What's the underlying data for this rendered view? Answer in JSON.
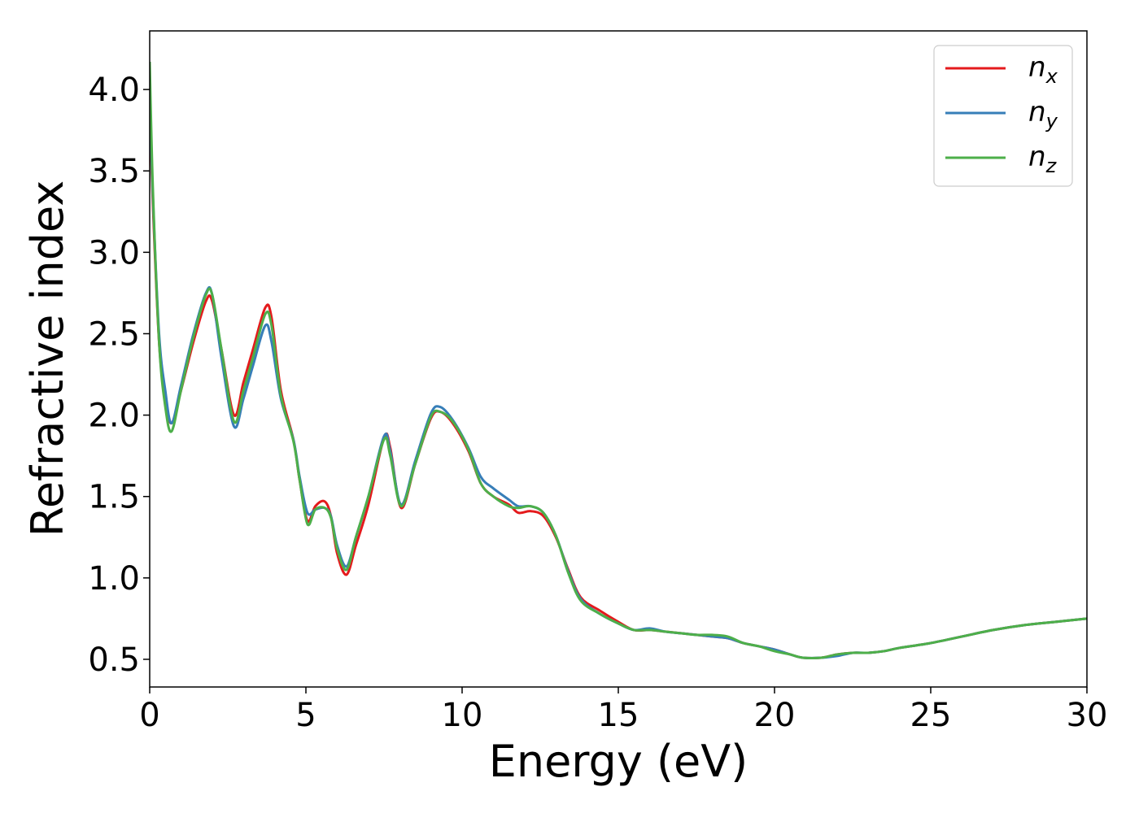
{
  "chart_data": {
    "type": "line",
    "title": "",
    "xlabel": "Energy (eV)",
    "ylabel": "Refractive index",
    "xlim": [
      0,
      30
    ],
    "ylim": [
      0.33,
      4.36
    ],
    "xticks": [
      0,
      5,
      10,
      15,
      20,
      25,
      30
    ],
    "xtick_labels": [
      "0",
      "5",
      "10",
      "15",
      "20",
      "25",
      "30"
    ],
    "yticks": [
      0.5,
      1.0,
      1.5,
      2.0,
      2.5,
      3.0,
      3.5,
      4.0
    ],
    "ytick_labels": [
      "0.5",
      "1.0",
      "1.5",
      "2.0",
      "2.5",
      "3.0",
      "3.5",
      "4.0"
    ],
    "grid": false,
    "legend_position": "top-right",
    "series": [
      {
        "name": "n_x",
        "label_base": "n",
        "label_sub": "x",
        "color": "#e41a1c",
        "x": [
          0,
          0.1,
          0.3,
          0.5,
          0.7,
          1.0,
          1.4,
          1.8,
          2.0,
          2.3,
          2.7,
          3.0,
          3.3,
          3.7,
          3.9,
          4.2,
          4.6,
          4.8,
          5.05,
          5.3,
          5.6,
          5.8,
          6.0,
          6.3,
          6.6,
          7.0,
          7.5,
          7.7,
          8.05,
          8.5,
          9.0,
          9.3,
          9.7,
          10.2,
          10.6,
          11.0,
          11.5,
          11.8,
          12.2,
          12.6,
          13.0,
          13.4,
          13.8,
          14.4,
          15.0,
          15.5,
          16.0,
          16.5,
          17.0,
          17.5,
          18.0,
          18.5,
          19.0,
          19.5,
          20.0,
          20.5,
          20.9,
          21.5,
          22.0,
          22.5,
          23.0,
          23.5,
          24.0,
          25.0,
          26.0,
          27.0,
          28.0,
          29.0,
          30.0
        ],
        "y": [
          3.85,
          3.3,
          2.45,
          2.1,
          1.95,
          2.15,
          2.45,
          2.7,
          2.7,
          2.4,
          2.0,
          2.2,
          2.4,
          2.66,
          2.6,
          2.15,
          1.85,
          1.6,
          1.35,
          1.44,
          1.47,
          1.38,
          1.15,
          1.02,
          1.2,
          1.45,
          1.86,
          1.8,
          1.43,
          1.7,
          1.98,
          2.02,
          1.95,
          1.78,
          1.58,
          1.5,
          1.45,
          1.4,
          1.41,
          1.38,
          1.25,
          1.05,
          0.88,
          0.8,
          0.73,
          0.68,
          0.68,
          0.67,
          0.66,
          0.65,
          0.64,
          0.63,
          0.6,
          0.58,
          0.56,
          0.53,
          0.51,
          0.51,
          0.53,
          0.54,
          0.54,
          0.55,
          0.57,
          0.6,
          0.64,
          0.68,
          0.71,
          0.73,
          0.75
        ]
      },
      {
        "name": "n_y",
        "label_base": "n",
        "label_sub": "y",
        "color": "#377eb8",
        "x": [
          0,
          0.1,
          0.3,
          0.5,
          0.7,
          1.0,
          1.4,
          1.8,
          2.0,
          2.3,
          2.7,
          3.0,
          3.3,
          3.7,
          3.9,
          4.2,
          4.6,
          4.8,
          5.05,
          5.3,
          5.6,
          5.8,
          6.0,
          6.3,
          6.6,
          7.0,
          7.5,
          7.7,
          8.05,
          8.5,
          9.0,
          9.3,
          9.7,
          10.2,
          10.6,
          11.0,
          11.5,
          11.8,
          12.2,
          12.6,
          13.0,
          13.4,
          13.8,
          14.4,
          15.0,
          15.5,
          16.0,
          16.5,
          17.0,
          17.5,
          18.0,
          18.5,
          19.0,
          19.5,
          20.0,
          20.5,
          20.9,
          21.5,
          22.0,
          22.5,
          23.0,
          23.5,
          24.0,
          25.0,
          26.0,
          27.0,
          28.0,
          29.0,
          30.0
        ],
        "y": [
          3.95,
          3.35,
          2.5,
          2.15,
          1.95,
          2.18,
          2.5,
          2.75,
          2.74,
          2.35,
          1.93,
          2.1,
          2.3,
          2.55,
          2.45,
          2.1,
          1.85,
          1.62,
          1.4,
          1.42,
          1.43,
          1.38,
          1.2,
          1.07,
          1.25,
          1.5,
          1.87,
          1.78,
          1.45,
          1.72,
          2.01,
          2.05,
          1.97,
          1.8,
          1.62,
          1.55,
          1.48,
          1.44,
          1.44,
          1.4,
          1.26,
          1.04,
          0.87,
          0.78,
          0.72,
          0.68,
          0.69,
          0.67,
          0.66,
          0.65,
          0.64,
          0.63,
          0.6,
          0.58,
          0.56,
          0.53,
          0.51,
          0.51,
          0.52,
          0.54,
          0.54,
          0.55,
          0.57,
          0.6,
          0.64,
          0.68,
          0.71,
          0.73,
          0.75
        ]
      },
      {
        "name": "n_z",
        "label_base": "n",
        "label_sub": "z",
        "color": "#4daf4a",
        "x": [
          0,
          0.1,
          0.3,
          0.5,
          0.7,
          1.0,
          1.4,
          1.8,
          2.0,
          2.3,
          2.7,
          3.0,
          3.3,
          3.7,
          3.9,
          4.2,
          4.6,
          4.8,
          5.05,
          5.3,
          5.6,
          5.8,
          6.0,
          6.3,
          6.6,
          7.0,
          7.5,
          7.7,
          8.05,
          8.5,
          9.0,
          9.3,
          9.7,
          10.2,
          10.6,
          11.0,
          11.5,
          11.8,
          12.2,
          12.6,
          13.0,
          13.4,
          13.8,
          14.4,
          15.0,
          15.5,
          16.0,
          16.5,
          17.0,
          17.5,
          18.0,
          18.5,
          19.0,
          19.5,
          20.0,
          20.5,
          20.9,
          21.5,
          22.0,
          22.5,
          23.0,
          23.5,
          24.0,
          25.0,
          26.0,
          27.0,
          28.0,
          29.0,
          30.0
        ],
        "y": [
          4.17,
          3.4,
          2.45,
          2.05,
          1.9,
          2.15,
          2.48,
          2.74,
          2.74,
          2.4,
          1.96,
          2.15,
          2.35,
          2.62,
          2.55,
          2.12,
          1.84,
          1.6,
          1.33,
          1.42,
          1.43,
          1.37,
          1.18,
          1.05,
          1.25,
          1.5,
          1.85,
          1.75,
          1.44,
          1.7,
          1.99,
          2.02,
          1.96,
          1.79,
          1.58,
          1.5,
          1.44,
          1.43,
          1.44,
          1.4,
          1.26,
          1.03,
          0.86,
          0.78,
          0.72,
          0.68,
          0.68,
          0.67,
          0.66,
          0.65,
          0.65,
          0.64,
          0.6,
          0.58,
          0.55,
          0.53,
          0.51,
          0.51,
          0.53,
          0.54,
          0.54,
          0.55,
          0.57,
          0.6,
          0.64,
          0.68,
          0.71,
          0.73,
          0.75
        ]
      }
    ]
  }
}
